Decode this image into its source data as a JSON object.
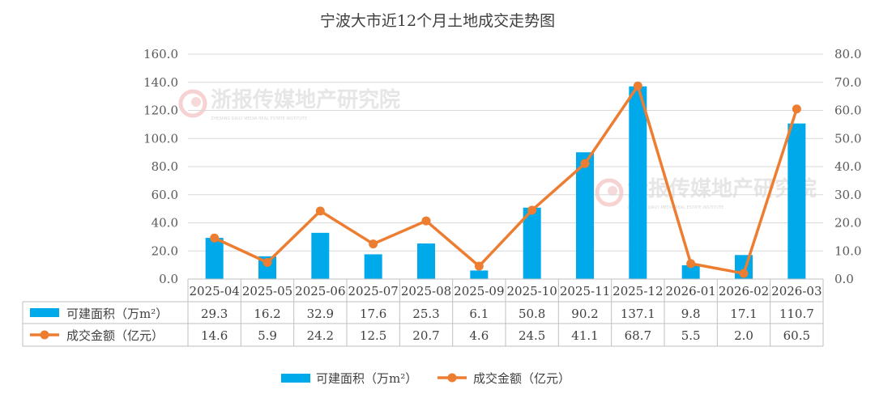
{
  "chart_data": {
    "type": "bar",
    "title": "宁波大市近12个月土地成交走势图",
    "categories": [
      "2025-04",
      "2025-05",
      "2025-06",
      "2025-07",
      "2025-08",
      "2025-09",
      "2025-10",
      "2025-11",
      "2025-12",
      "2026-01",
      "2026-02",
      "2026-03"
    ],
    "series": [
      {
        "name": "可建面积（万m²）",
        "type": "bar",
        "axis": "left",
        "color": "#00A9EA",
        "values": [
          29.3,
          16.2,
          32.9,
          17.6,
          25.3,
          6.1,
          50.8,
          90.2,
          137.1,
          9.8,
          17.1,
          110.7
        ]
      },
      {
        "name": "成交金额（亿元）",
        "type": "line",
        "axis": "right",
        "color": "#ED7D31",
        "values": [
          14.6,
          5.9,
          24.2,
          12.5,
          20.7,
          4.6,
          24.5,
          41.1,
          68.7,
          5.5,
          2.0,
          60.5
        ]
      }
    ],
    "y_left": {
      "ylim": [
        0,
        160
      ],
      "ticks": [
        "0.0",
        "20.0",
        "40.0",
        "60.0",
        "80.0",
        "100.0",
        "120.0",
        "140.0",
        "160.0"
      ]
    },
    "y_right": {
      "ylim": [
        0,
        80
      ],
      "ticks": [
        "0.0",
        "10.0",
        "20.0",
        "30.0",
        "40.0",
        "50.0",
        "60.0",
        "70.0",
        "80.0"
      ]
    },
    "grid": true,
    "data_table": true,
    "legend_position": "bottom"
  },
  "watermark": {
    "text": "浙报传媒地产研究院",
    "subtext": "ZHEJIANG DAILY MEDIA REAL ESTATE INSTITUTE"
  }
}
